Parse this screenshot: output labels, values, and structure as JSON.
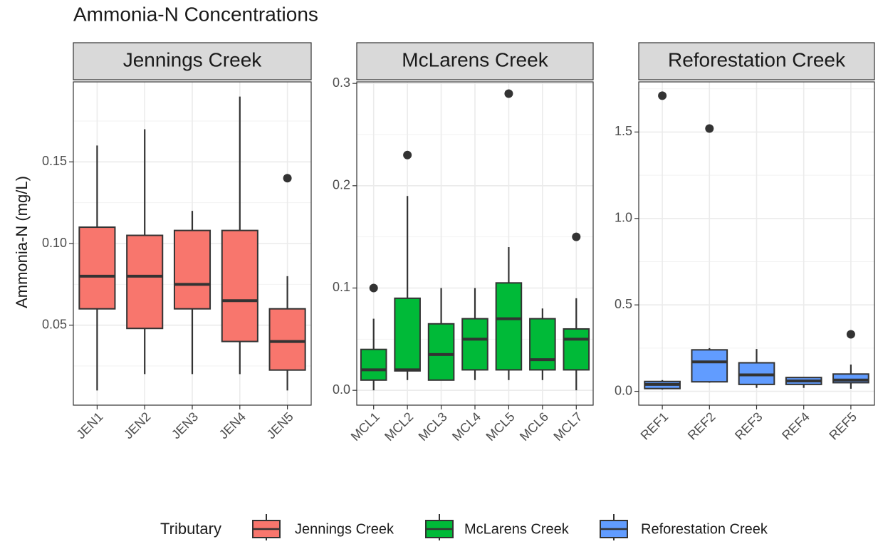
{
  "title": "Ammonia-N Concentrations",
  "y_label": "Ammonia-N (mg/L)",
  "legend_title": "Tributary",
  "chart_data": [
    {
      "type": "box",
      "title": "Jennings Creek",
      "categories": [
        "JEN1",
        "JEN2",
        "JEN3",
        "JEN4",
        "JEN5"
      ],
      "series": [
        {
          "name": "Jennings Creek",
          "color": "#f8766d",
          "min": [
            0.01,
            0.02,
            0.02,
            0.02,
            0.01
          ],
          "q1": [
            0.06,
            0.048,
            0.06,
            0.04,
            0.0225
          ],
          "median": [
            0.08,
            0.08,
            0.075,
            0.065,
            0.04
          ],
          "q3": [
            0.11,
            0.105,
            0.108,
            0.108,
            0.06
          ],
          "max": [
            0.16,
            0.17,
            0.12,
            0.19,
            0.08
          ],
          "outliers": [
            [],
            [],
            [],
            [],
            [
              0.14
            ]
          ]
        }
      ],
      "ylim": [
        0.001,
        0.199
      ],
      "yticks": [
        0.05,
        {
          "value": 0.1,
          "label": "0.10"
        },
        0.15
      ],
      "minor_yticks": [
        0.025,
        0.075,
        0.125,
        0.175
      ],
      "grid": true
    },
    {
      "type": "box",
      "title": "McLarens Creek",
      "categories": [
        "MCL1",
        "MCL2",
        "MCL3",
        "MCL4",
        "MCL5",
        "MCL6",
        "MCL7"
      ],
      "series": [
        {
          "name": "McLarens Creek",
          "color": "#00ba38",
          "min": [
            0,
            0.01,
            0.01,
            0.01,
            0.01,
            0.01,
            0
          ],
          "q1": [
            0.01,
            0.019,
            0.01,
            0.02,
            0.02,
            0.02,
            0.02
          ],
          "median": [
            0.02,
            0.02,
            0.035,
            0.05,
            0.07,
            0.03,
            0.05
          ],
          "q3": [
            0.04,
            0.09,
            0.065,
            0.07,
            0.105,
            0.07,
            0.06
          ],
          "max": [
            0.07,
            0.19,
            0.1,
            0.1,
            0.14,
            0.08,
            0.09
          ],
          "outliers": [
            [
              0.1
            ],
            [
              0.23
            ],
            [],
            [],
            [
              0.29
            ],
            [],
            [
              0.15
            ]
          ]
        }
      ],
      "ylim": [
        -0.0145,
        0.3015
      ],
      "yticks": [
        {
          "value": 0,
          "label": "0.0"
        },
        0.1,
        0.2,
        0.3
      ],
      "minor_yticks": [
        0.05,
        0.15,
        0.25
      ],
      "grid": true
    },
    {
      "type": "box",
      "title": "Reforestation Creek",
      "categories": [
        "REF1",
        "REF2",
        "REF3",
        "REF4",
        "REF5"
      ],
      "series": [
        {
          "name": "Reforestation Creek",
          "color": "#619cff",
          "min": [
            0.01,
            0.05,
            0.02,
            0.02,
            0.015
          ],
          "q1": [
            0.016,
            0.055,
            0.04,
            0.04,
            0.05
          ],
          "median": [
            0.04,
            0.17,
            0.095,
            0.06,
            0.065
          ],
          "q3": [
            0.057,
            0.24,
            0.165,
            0.08,
            0.1
          ],
          "max": [
            0.065,
            0.25,
            0.245,
            0.08,
            0.155
          ],
          "outliers": [
            [
              1.71
            ],
            [
              1.52
            ],
            [],
            [],
            [
              0.33
            ]
          ]
        }
      ],
      "ylim": [
        -0.08,
        1.79
      ],
      "yticks": [
        {
          "value": 0,
          "label": "0.0"
        },
        0.5,
        {
          "value": 1,
          "label": "1.0"
        },
        1.5
      ],
      "minor_yticks": [
        0.25,
        0.75,
        1.25,
        1.75
      ],
      "grid": true
    }
  ]
}
